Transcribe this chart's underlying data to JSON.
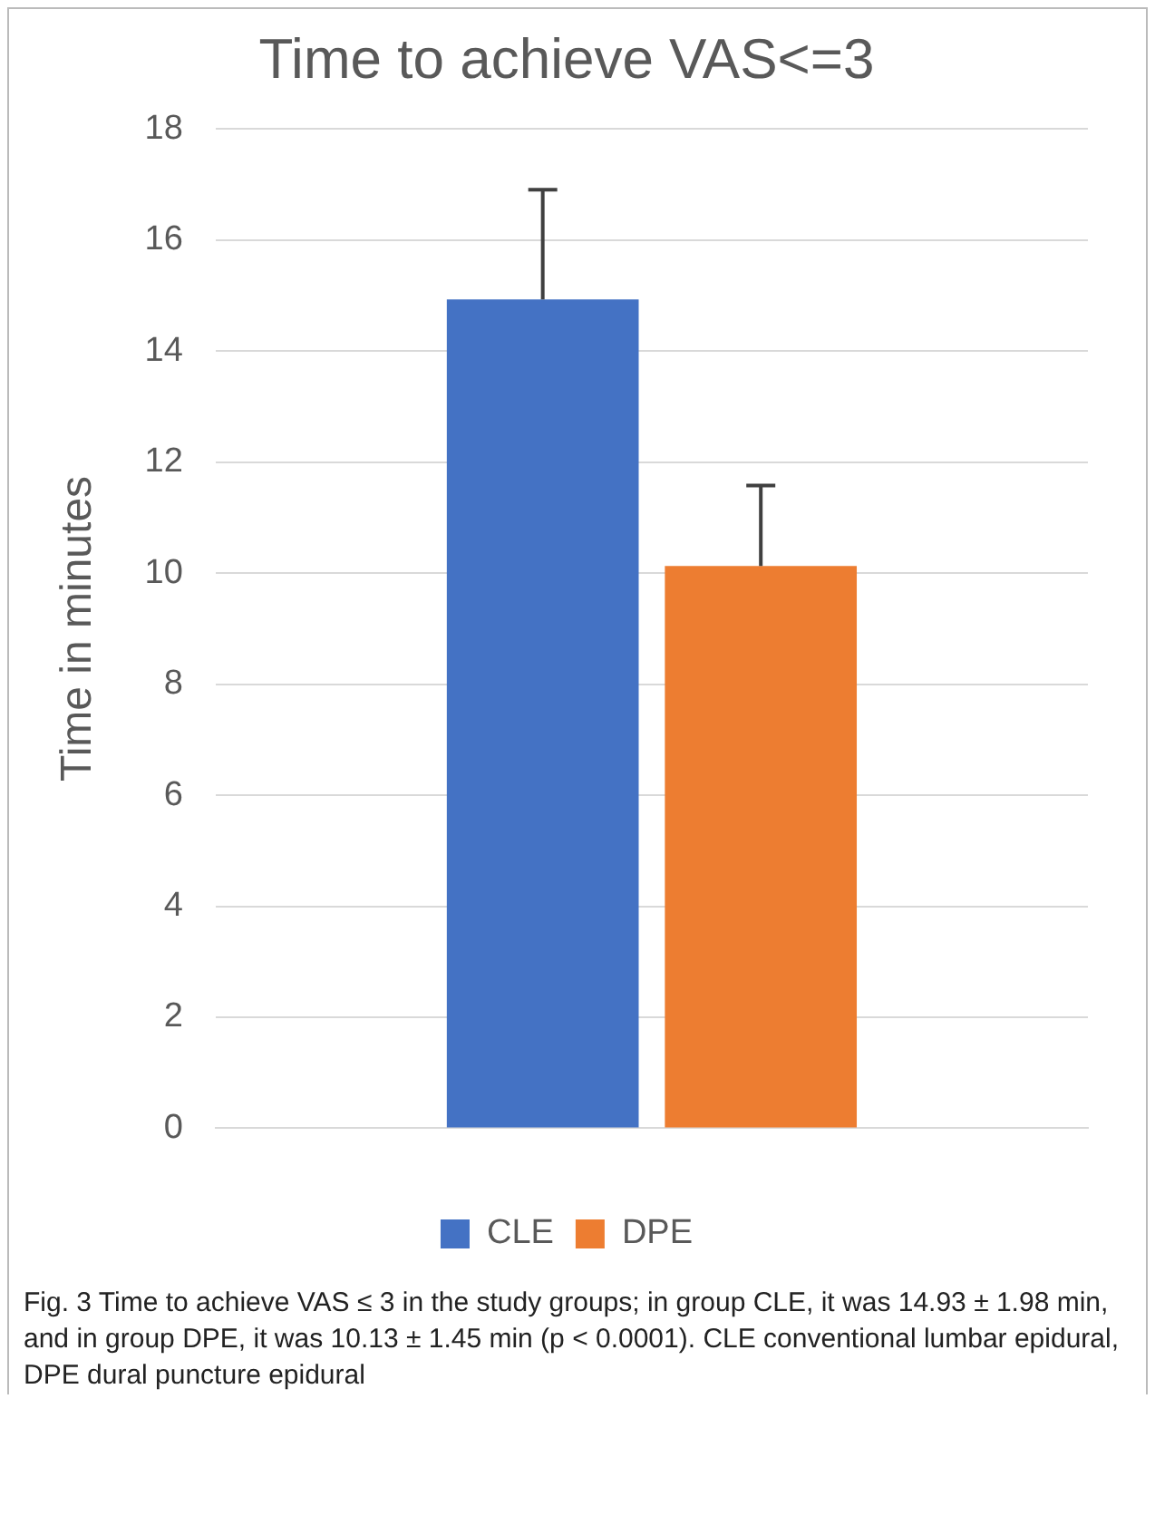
{
  "chart_data": {
    "type": "bar",
    "title": "Time to achieve VAS<=3",
    "ylabel": "Time in minutes",
    "categories": [
      null
    ],
    "series": [
      {
        "name": "CLE",
        "color": "#4472c4",
        "values": [
          14.93
        ],
        "errors": [
          [
            14.93,
            16.91
          ]
        ]
      },
      {
        "name": "DPE",
        "color": "#ed7d31",
        "values": [
          10.13
        ],
        "errors": [
          [
            10.13,
            11.58
          ]
        ]
      }
    ],
    "ylim": [
      0,
      18
    ],
    "yticks": [
      0,
      2,
      4,
      6,
      8,
      10,
      12,
      14,
      16,
      18
    ],
    "grid": "y",
    "legend": "bottom",
    "annotations": [
      "Fig. 3 Time to achieve VAS ≤ 3 in the study groups; in group CLE, it was 14.93 ± 1.98 min, and in group DPE, it was 10.13 ± 1.45 min (p < 0.0001). CLE conventional lumbar epidural, DPE dural puncture epidural"
    ]
  }
}
